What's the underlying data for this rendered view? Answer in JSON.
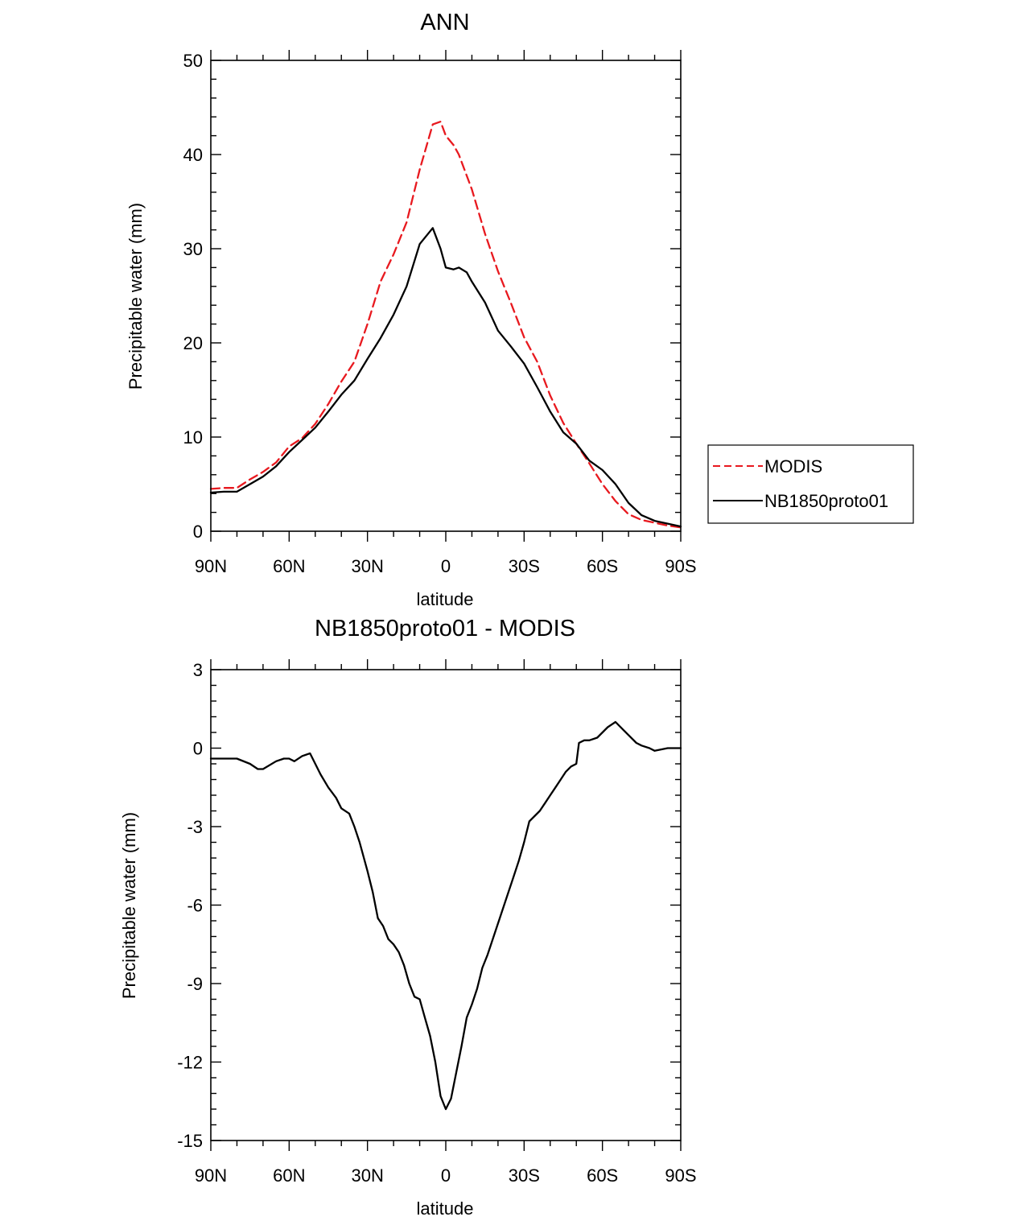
{
  "chart_data": [
    {
      "type": "line",
      "title": "ANN",
      "xlabel": "latitude",
      "ylabel": "Precipitable water (mm)",
      "xlim": [
        90,
        -90
      ],
      "ylim": [
        0,
        50
      ],
      "x_ticks": [
        90,
        60,
        30,
        0,
        -30,
        -60,
        -90
      ],
      "x_tick_labels": [
        "90N",
        "60N",
        "30N",
        "0",
        "30S",
        "60S",
        "90S"
      ],
      "y_ticks": [
        0,
        10,
        20,
        30,
        40,
        50
      ],
      "y_tick_labels": [
        "0",
        "10",
        "20",
        "30",
        "40",
        "50"
      ],
      "legend_position": "right",
      "series": [
        {
          "name": "MODIS",
          "color": "#e8191f",
          "style": "dashed",
          "x": [
            90,
            85,
            80,
            75,
            70,
            65,
            60,
            55,
            50,
            45,
            40,
            35,
            30,
            25,
            20,
            15,
            10,
            5,
            2,
            0,
            -3,
            -5,
            -10,
            -15,
            -20,
            -25,
            -30,
            -35,
            -40,
            -45,
            -50,
            -55,
            -60,
            -65,
            -70,
            -75,
            -80,
            -85,
            -90
          ],
          "values": [
            4.5,
            4.6,
            4.6,
            5.5,
            6.3,
            7.3,
            9.0,
            9.9,
            11.4,
            13.5,
            15.9,
            18.0,
            22.0,
            26.5,
            29.4,
            32.8,
            38.4,
            43.2,
            43.5,
            42.0,
            41.0,
            40.0,
            36.3,
            31.6,
            27.6,
            24.2,
            20.6,
            18.0,
            14.4,
            11.5,
            9.3,
            7.2,
            5.0,
            3.2,
            1.8,
            1.2,
            0.9,
            0.6,
            0.4
          ]
        },
        {
          "name": "NB1850proto01",
          "color": "#000000",
          "style": "solid",
          "x": [
            90,
            85,
            80,
            75,
            70,
            65,
            60,
            55,
            50,
            45,
            40,
            35,
            30,
            25,
            20,
            15,
            10,
            5,
            2,
            0,
            -3,
            -5,
            -8,
            -10,
            -15,
            -20,
            -25,
            -30,
            -35,
            -40,
            -45,
            -50,
            -55,
            -60,
            -65,
            -70,
            -75,
            -80,
            -85,
            -90
          ],
          "values": [
            4.1,
            4.2,
            4.2,
            5.0,
            5.8,
            6.9,
            8.4,
            9.7,
            11.0,
            12.7,
            14.5,
            16.0,
            18.3,
            20.5,
            23.0,
            26.0,
            30.5,
            32.2,
            30.0,
            28.0,
            27.8,
            28.0,
            27.5,
            26.5,
            24.3,
            21.3,
            19.6,
            17.8,
            15.3,
            12.7,
            10.5,
            9.3,
            7.5,
            6.5,
            5.0,
            3.0,
            1.7,
            1.1,
            0.8,
            0.5
          ]
        }
      ]
    },
    {
      "type": "line",
      "title": "NB1850proto01 - MODIS",
      "xlabel": "latitude",
      "ylabel": "Precipitable water (mm)",
      "xlim": [
        90,
        -90
      ],
      "ylim": [
        -15,
        3
      ],
      "x_ticks": [
        90,
        60,
        30,
        0,
        -30,
        -60,
        -90
      ],
      "x_tick_labels": [
        "90N",
        "60N",
        "30N",
        "0",
        "30S",
        "60S",
        "90S"
      ],
      "y_ticks": [
        -15,
        -12,
        -9,
        -6,
        -3,
        0,
        3
      ],
      "y_tick_labels": [
        "-15",
        "-12",
        "-9",
        "-6",
        "-3",
        "0",
        "3"
      ],
      "series": [
        {
          "name": "NB1850proto01 - MODIS",
          "color": "#000000",
          "style": "solid",
          "x": [
            90,
            85,
            80,
            75,
            72,
            70,
            65,
            62,
            60,
            58,
            55,
            52,
            50,
            48,
            45,
            42,
            40,
            37,
            35,
            33,
            30,
            28,
            26,
            24,
            22,
            20,
            18,
            16,
            14,
            12,
            10,
            8,
            6,
            4,
            2,
            0,
            -2,
            -4,
            -6,
            -8,
            -10,
            -12,
            -14,
            -16,
            -18,
            -20,
            -22,
            -24,
            -26,
            -28,
            -30,
            -32,
            -34,
            -36,
            -38,
            -40,
            -42,
            -44,
            -46,
            -48,
            -50,
            -51,
            -53,
            -55,
            -58,
            -60,
            -62,
            -65,
            -68,
            -70,
            -73,
            -75,
            -78,
            -80,
            -85,
            -90
          ],
          "values": [
            -0.4,
            -0.4,
            -0.4,
            -0.6,
            -0.8,
            -0.8,
            -0.5,
            -0.4,
            -0.4,
            -0.5,
            -0.3,
            -0.2,
            -0.6,
            -1.0,
            -1.5,
            -1.9,
            -2.3,
            -2.5,
            -3.0,
            -3.6,
            -4.7,
            -5.5,
            -6.5,
            -6.8,
            -7.3,
            -7.5,
            -7.8,
            -8.3,
            -9.0,
            -9.5,
            -9.6,
            -10.3,
            -11.0,
            -12.0,
            -13.3,
            -13.8,
            -13.4,
            -12.4,
            -11.4,
            -10.3,
            -9.8,
            -9.2,
            -8.4,
            -7.9,
            -7.3,
            -6.7,
            -6.1,
            -5.5,
            -4.9,
            -4.3,
            -3.6,
            -2.8,
            -2.6,
            -2.4,
            -2.1,
            -1.8,
            -1.5,
            -1.2,
            -0.9,
            -0.7,
            -0.6,
            0.2,
            0.3,
            0.3,
            0.4,
            0.6,
            0.8,
            1.0,
            0.7,
            0.5,
            0.2,
            0.1,
            0.0,
            -0.1,
            0.0,
            0.0
          ]
        }
      ]
    }
  ]
}
